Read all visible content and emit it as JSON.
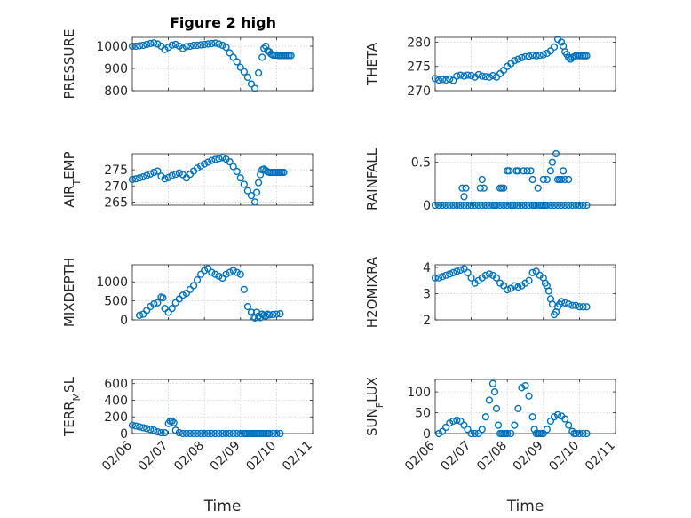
{
  "figure": {
    "title": "Figure 2 high",
    "marker_color": "#0072BD",
    "xlabel": "Time",
    "x_tick_labels": [
      "02/06",
      "02/07",
      "02/08",
      "02/09",
      "02/10",
      "02/11"
    ]
  },
  "chart_data": [
    {
      "id": "pressure",
      "type": "scatter",
      "title": "Figure 2 high",
      "ylabel": "PRESSURE",
      "ylim": [
        800,
        1040
      ],
      "yticks": [
        800,
        900,
        1000
      ],
      "xlim": [
        0,
        5
      ],
      "x": [
        0,
        0.1,
        0.2,
        0.3,
        0.4,
        0.5,
        0.6,
        0.7,
        0.8,
        0.9,
        1.0,
        1.1,
        1.2,
        1.3,
        1.4,
        1.5,
        1.6,
        1.7,
        1.8,
        1.9,
        2.0,
        2.1,
        2.2,
        2.3,
        2.4,
        2.5,
        2.6,
        2.7,
        2.8,
        2.9,
        3.0,
        3.1,
        3.2,
        3.3,
        3.4,
        3.5,
        3.6,
        3.65,
        3.7,
        3.75,
        3.8,
        3.85,
        3.9,
        3.95,
        4.0,
        4.05,
        4.1,
        4.15,
        4.2,
        4.25,
        4.3,
        4.35,
        4.4
      ],
      "y": [
        1000,
        1000,
        1002,
        1004,
        1008,
        1012,
        1015,
        1010,
        1000,
        985,
        995,
        1005,
        1008,
        1000,
        990,
        998,
        1000,
        1004,
        1004,
        1006,
        1008,
        1010,
        1012,
        1014,
        1010,
        1004,
        995,
        970,
        950,
        930,
        905,
        885,
        860,
        830,
        810,
        880,
        950,
        990,
        1000,
        980,
        975,
        965,
        960,
        960,
        960,
        958,
        958,
        958,
        958,
        958,
        958,
        958,
        958
      ]
    },
    {
      "id": "theta",
      "type": "scatter",
      "ylabel": "THETA",
      "ylim": [
        270,
        281
      ],
      "yticks": [
        270,
        275,
        280
      ],
      "xlim": [
        0,
        5
      ],
      "x": [
        0,
        0.1,
        0.2,
        0.3,
        0.4,
        0.5,
        0.6,
        0.7,
        0.8,
        0.9,
        1.0,
        1.1,
        1.2,
        1.3,
        1.4,
        1.5,
        1.6,
        1.7,
        1.8,
        1.9,
        2.0,
        2.1,
        2.2,
        2.3,
        2.4,
        2.5,
        2.6,
        2.7,
        2.8,
        2.9,
        3.0,
        3.1,
        3.2,
        3.3,
        3.4,
        3.5,
        3.55,
        3.6,
        3.65,
        3.7,
        3.75,
        3.8,
        3.85,
        3.9,
        3.95,
        4.0,
        4.05,
        4.1,
        4.15,
        4.2
      ],
      "y": [
        272.5,
        272.2,
        272.3,
        272.2,
        272.4,
        272.1,
        273.0,
        273.2,
        273.0,
        273.2,
        273.1,
        272.8,
        273.3,
        273.0,
        272.9,
        272.8,
        273.1,
        272.8,
        273.5,
        274.2,
        275.0,
        275.6,
        276.2,
        276.5,
        276.8,
        277.0,
        277.1,
        277.3,
        277.2,
        277.3,
        277.4,
        277.7,
        278.2,
        279.0,
        280.6,
        280.0,
        279.2,
        278.0,
        277.5,
        276.8,
        276.5,
        276.8,
        277.0,
        277.2,
        277.3,
        277.2,
        277.2,
        277.2,
        277.2,
        277.2
      ]
    },
    {
      "id": "air_temp",
      "type": "scatter",
      "ylabel": "AIR_TEMP",
      "ylim": [
        264,
        280
      ],
      "yticks": [
        265,
        270,
        275
      ],
      "xlim": [
        0,
        5
      ],
      "x": [
        0,
        0.1,
        0.2,
        0.3,
        0.4,
        0.5,
        0.6,
        0.7,
        0.8,
        0.9,
        1.0,
        1.1,
        1.2,
        1.3,
        1.4,
        1.5,
        1.6,
        1.7,
        1.8,
        1.9,
        2.0,
        2.1,
        2.2,
        2.3,
        2.4,
        2.5,
        2.6,
        2.7,
        2.8,
        2.9,
        3.0,
        3.1,
        3.2,
        3.3,
        3.4,
        3.45,
        3.5,
        3.55,
        3.6,
        3.65,
        3.7,
        3.75,
        3.8,
        3.85,
        3.9,
        3.95,
        4.0,
        4.05,
        4.1,
        4.15,
        4.2
      ],
      "y": [
        272.0,
        272.2,
        272.5,
        272.8,
        273.2,
        273.7,
        274.2,
        274.6,
        273.0,
        272.2,
        272.6,
        273.2,
        273.6,
        274.0,
        273.5,
        272.5,
        273.6,
        274.6,
        275.5,
        276.2,
        276.8,
        277.4,
        277.9,
        278.2,
        278.5,
        278.8,
        278.3,
        277.5,
        276.0,
        274.5,
        272.5,
        270.5,
        268.5,
        267.0,
        265.0,
        268.0,
        271.0,
        273.5,
        275.0,
        275.2,
        274.8,
        274.4,
        274.2,
        274.2,
        274.2,
        274.2,
        274.2,
        274.2,
        274.2,
        274.2,
        274.2
      ]
    },
    {
      "id": "rainfall",
      "type": "scatter",
      "ylabel": "RAINFALL",
      "ylim": [
        0,
        0.6
      ],
      "yticks": [
        0,
        0.5
      ],
      "xlim": [
        0,
        5
      ],
      "x": [
        0,
        0.1,
        0.2,
        0.3,
        0.4,
        0.5,
        0.6,
        0.7,
        0.8,
        0.9,
        1.0,
        1.1,
        1.2,
        1.3,
        1.4,
        1.5,
        1.6,
        1.7,
        1.8,
        1.9,
        2.0,
        2.1,
        2.2,
        2.3,
        2.4,
        2.5,
        2.6,
        2.7,
        2.8,
        2.9,
        3.0,
        3.1,
        3.2,
        3.3,
        3.4,
        3.5,
        3.6,
        3.7,
        3.8,
        3.9,
        4.0,
        4.1,
        4.2,
        0.75,
        0.85,
        0.8,
        1.25,
        1.3,
        1.35,
        1.8,
        1.85,
        1.9,
        2.0,
        2.05,
        2.25,
        2.3,
        2.45,
        2.55,
        2.65,
        2.7,
        2.85,
        3.0,
        3.1,
        3.2,
        3.25,
        3.35,
        3.4,
        3.45,
        3.5,
        3.55,
        3.6,
        3.7,
        1.4,
        1.65,
        2.15,
        2.5,
        2.75,
        2.95,
        3.05
      ],
      "y": [
        0,
        0,
        0,
        0,
        0,
        0,
        0,
        0,
        0,
        0,
        0,
        0,
        0,
        0,
        0,
        0,
        0,
        0,
        0,
        0,
        0,
        0,
        0,
        0,
        0,
        0,
        0,
        0,
        0,
        0,
        0,
        0,
        0,
        0,
        0,
        0,
        0,
        0,
        0,
        0,
        0,
        0,
        0,
        0.2,
        0.2,
        0.1,
        0.2,
        0.3,
        0.2,
        0.2,
        0.2,
        0.2,
        0.4,
        0.4,
        0.4,
        0.4,
        0.4,
        0.4,
        0.4,
        0.3,
        0.2,
        0.3,
        0.3,
        0.4,
        0.5,
        0.6,
        0.3,
        0.3,
        0.3,
        0.4,
        0.3,
        0.3,
        0,
        0,
        0,
        0,
        0,
        0,
        0
      ]
    },
    {
      "id": "mixdepth",
      "type": "scatter",
      "ylabel": "MIXDEPTH",
      "ylim": [
        0,
        1450
      ],
      "yticks": [
        0,
        500,
        1000
      ],
      "xlim": [
        0,
        5
      ],
      "x": [
        0.2,
        0.3,
        0.4,
        0.5,
        0.6,
        0.7,
        0.8,
        0.85,
        0.9,
        1.0,
        1.1,
        1.2,
        1.3,
        1.4,
        1.5,
        1.6,
        1.7,
        1.8,
        1.9,
        2.0,
        2.1,
        2.2,
        2.3,
        2.4,
        2.5,
        2.6,
        2.7,
        2.8,
        2.9,
        3.0,
        3.1,
        3.2,
        3.3,
        3.35,
        3.4,
        3.45,
        3.5,
        3.55,
        3.6,
        3.65,
        3.7,
        3.75,
        3.8,
        3.9,
        4.0,
        4.1
      ],
      "y": [
        120,
        150,
        250,
        350,
        420,
        450,
        600,
        580,
        300,
        200,
        300,
        450,
        550,
        650,
        700,
        800,
        900,
        1050,
        1200,
        1300,
        1350,
        1250,
        1200,
        1150,
        1100,
        1200,
        1250,
        1300,
        1250,
        1200,
        800,
        350,
        200,
        80,
        50,
        200,
        100,
        60,
        150,
        120,
        100,
        150,
        130,
        140,
        150,
        160
      ]
    },
    {
      "id": "h2omixra",
      "type": "scatter",
      "ylabel": "H2OMIXRA",
      "ylim": [
        2,
        4.1
      ],
      "yticks": [
        2,
        3,
        4
      ],
      "xlim": [
        0,
        5
      ],
      "x": [
        0,
        0.1,
        0.2,
        0.3,
        0.4,
        0.5,
        0.6,
        0.7,
        0.8,
        0.9,
        1.0,
        1.1,
        1.2,
        1.3,
        1.4,
        1.5,
        1.6,
        1.7,
        1.8,
        1.9,
        2.0,
        2.1,
        2.2,
        2.3,
        2.4,
        2.5,
        2.6,
        2.7,
        2.8,
        2.9,
        3.0,
        3.05,
        3.1,
        3.15,
        3.2,
        3.25,
        3.3,
        3.35,
        3.4,
        3.45,
        3.5,
        3.6,
        3.7,
        3.8,
        3.9,
        4.0,
        4.1,
        4.2
      ],
      "y": [
        3.6,
        3.6,
        3.65,
        3.7,
        3.75,
        3.8,
        3.85,
        3.9,
        3.95,
        3.8,
        3.6,
        3.4,
        3.5,
        3.6,
        3.7,
        3.75,
        3.7,
        3.6,
        3.4,
        3.3,
        3.15,
        3.2,
        3.3,
        3.25,
        3.3,
        3.4,
        3.5,
        3.8,
        3.85,
        3.7,
        3.6,
        3.4,
        3.3,
        3.1,
        2.8,
        2.6,
        2.2,
        2.3,
        2.5,
        2.6,
        2.7,
        2.65,
        2.6,
        2.55,
        2.55,
        2.5,
        2.5,
        2.5
      ]
    },
    {
      "id": "terr_msl",
      "type": "scatter",
      "ylabel": "TERR_MSL",
      "ylim": [
        0,
        650
      ],
      "yticks": [
        0,
        200,
        400,
        600
      ],
      "xlim": [
        0,
        5
      ],
      "x": [
        0,
        0.1,
        0.2,
        0.3,
        0.4,
        0.5,
        0.6,
        0.7,
        0.8,
        0.9,
        1.0,
        1.05,
        1.1,
        1.15,
        1.2,
        1.3,
        1.4,
        1.5,
        1.6,
        1.7,
        1.8,
        1.9,
        2.0,
        2.1,
        2.2,
        2.3,
        2.4,
        2.5,
        2.6,
        2.7,
        2.8,
        2.9,
        3.0,
        3.1,
        3.15,
        3.2,
        3.25,
        3.3,
        3.35,
        3.4,
        3.45,
        3.5,
        3.55,
        3.6,
        3.65,
        3.7,
        3.75,
        3.8,
        3.9,
        4.0,
        4.1
      ],
      "y": [
        100,
        90,
        80,
        70,
        60,
        50,
        40,
        20,
        10,
        10,
        120,
        150,
        150,
        130,
        40,
        10,
        0,
        0,
        0,
        0,
        0,
        0,
        0,
        0,
        0,
        0,
        0,
        0,
        0,
        0,
        0,
        0,
        0,
        0,
        0,
        0,
        0,
        0,
        0,
        0,
        0,
        0,
        0,
        0,
        0,
        0,
        0,
        0,
        0,
        0,
        0
      ]
    },
    {
      "id": "sun_flux",
      "type": "scatter",
      "ylabel": "SUN_FLUX",
      "ylim": [
        0,
        130
      ],
      "yticks": [
        0,
        50,
        100
      ],
      "xlim": [
        0,
        5
      ],
      "x": [
        0.1,
        0.2,
        0.3,
        0.4,
        0.5,
        0.6,
        0.7,
        0.8,
        0.9,
        1.0,
        1.1,
        1.2,
        1.3,
        1.4,
        1.5,
        1.6,
        1.65,
        1.7,
        1.75,
        1.8,
        1.85,
        1.9,
        1.95,
        2.0,
        2.1,
        2.2,
        2.3,
        2.4,
        2.5,
        2.6,
        2.7,
        2.75,
        2.8,
        2.85,
        2.9,
        2.95,
        3.0,
        3.1,
        3.2,
        3.3,
        3.4,
        3.5,
        3.6,
        3.7,
        3.8,
        3.85,
        3.9,
        4.0,
        4.1,
        4.2
      ],
      "y": [
        0,
        5,
        15,
        25,
        30,
        32,
        30,
        20,
        10,
        0,
        0,
        0,
        10,
        40,
        80,
        120,
        100,
        60,
        20,
        0,
        0,
        0,
        0,
        0,
        0,
        20,
        60,
        110,
        115,
        90,
        40,
        10,
        0,
        0,
        0,
        0,
        0,
        10,
        30,
        40,
        45,
        42,
        35,
        20,
        5,
        0,
        0,
        0,
        0,
        0
      ]
    }
  ]
}
